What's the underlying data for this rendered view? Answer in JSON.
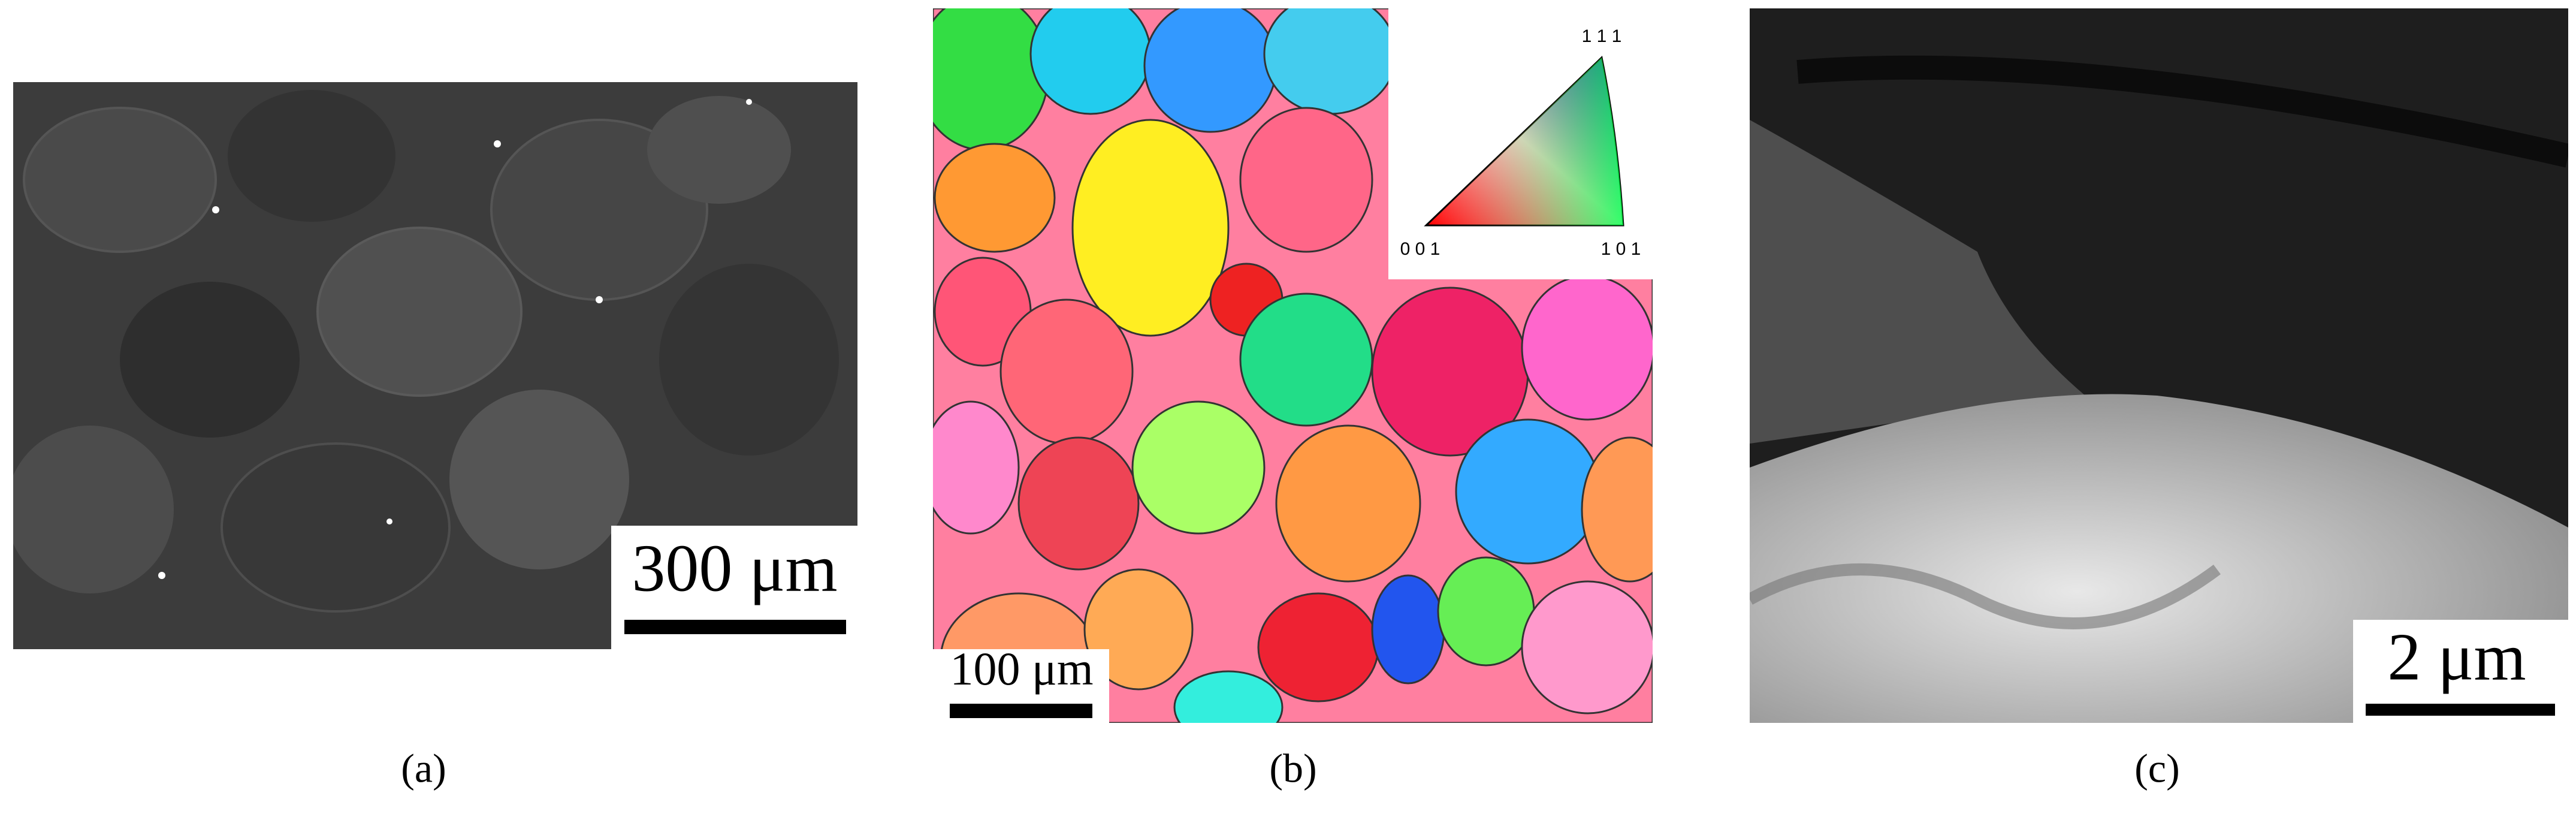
{
  "panels": [
    {
      "label": "(a)",
      "scale_bar": "300 μm"
    },
    {
      "label": "(b)",
      "scale_bar": "100 μm",
      "inset": {
        "top": "1 1 1",
        "left": "0 0 1",
        "right": "1 0 1"
      }
    },
    {
      "label": "(c)",
      "scale_bar": "2 μm"
    }
  ]
}
